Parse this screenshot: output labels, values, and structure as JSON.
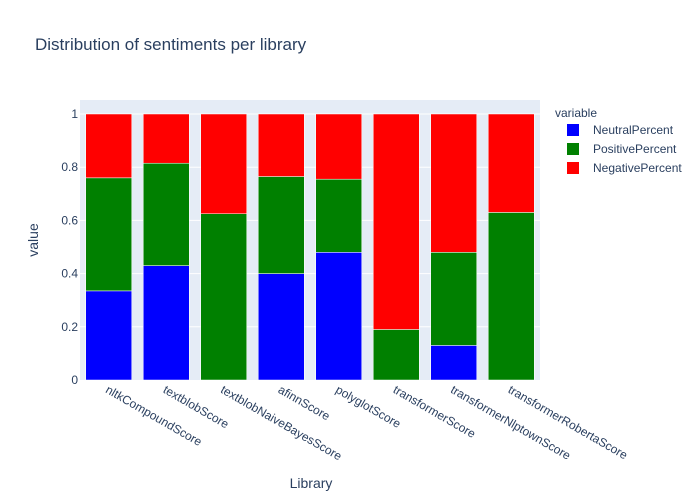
{
  "chart_data": {
    "type": "bar",
    "stacked": true,
    "title": "Distribution of sentiments per library",
    "xlabel": "Library",
    "ylabel": "value",
    "ylim": [
      0,
      1
    ],
    "yticks": [
      "0",
      "0.2",
      "0.4",
      "0.6",
      "0.8",
      "1"
    ],
    "grid": true,
    "legend_title": "variable",
    "legend_position": "top-right",
    "categories": [
      "nltkCompoundScore",
      "textblobScore",
      "textblobNaiveBayesScore",
      "afinnScore",
      "polyglotScore",
      "transformerScore",
      "transformerNlptownScore",
      "transformerRobertaScore"
    ],
    "series": [
      {
        "name": "NeutralPercent",
        "color": "#0000ff",
        "values": [
          0.335,
          0.43,
          0.0,
          0.4,
          0.48,
          0.0,
          0.13,
          0.0
        ]
      },
      {
        "name": "PositivePercent",
        "color": "#008000",
        "values": [
          0.425,
          0.385,
          0.625,
          0.365,
          0.275,
          0.19,
          0.35,
          0.63
        ]
      },
      {
        "name": "NegativePercent",
        "color": "#ff0000",
        "values": [
          0.24,
          0.185,
          0.375,
          0.235,
          0.245,
          0.81,
          0.52,
          0.37
        ]
      }
    ]
  }
}
